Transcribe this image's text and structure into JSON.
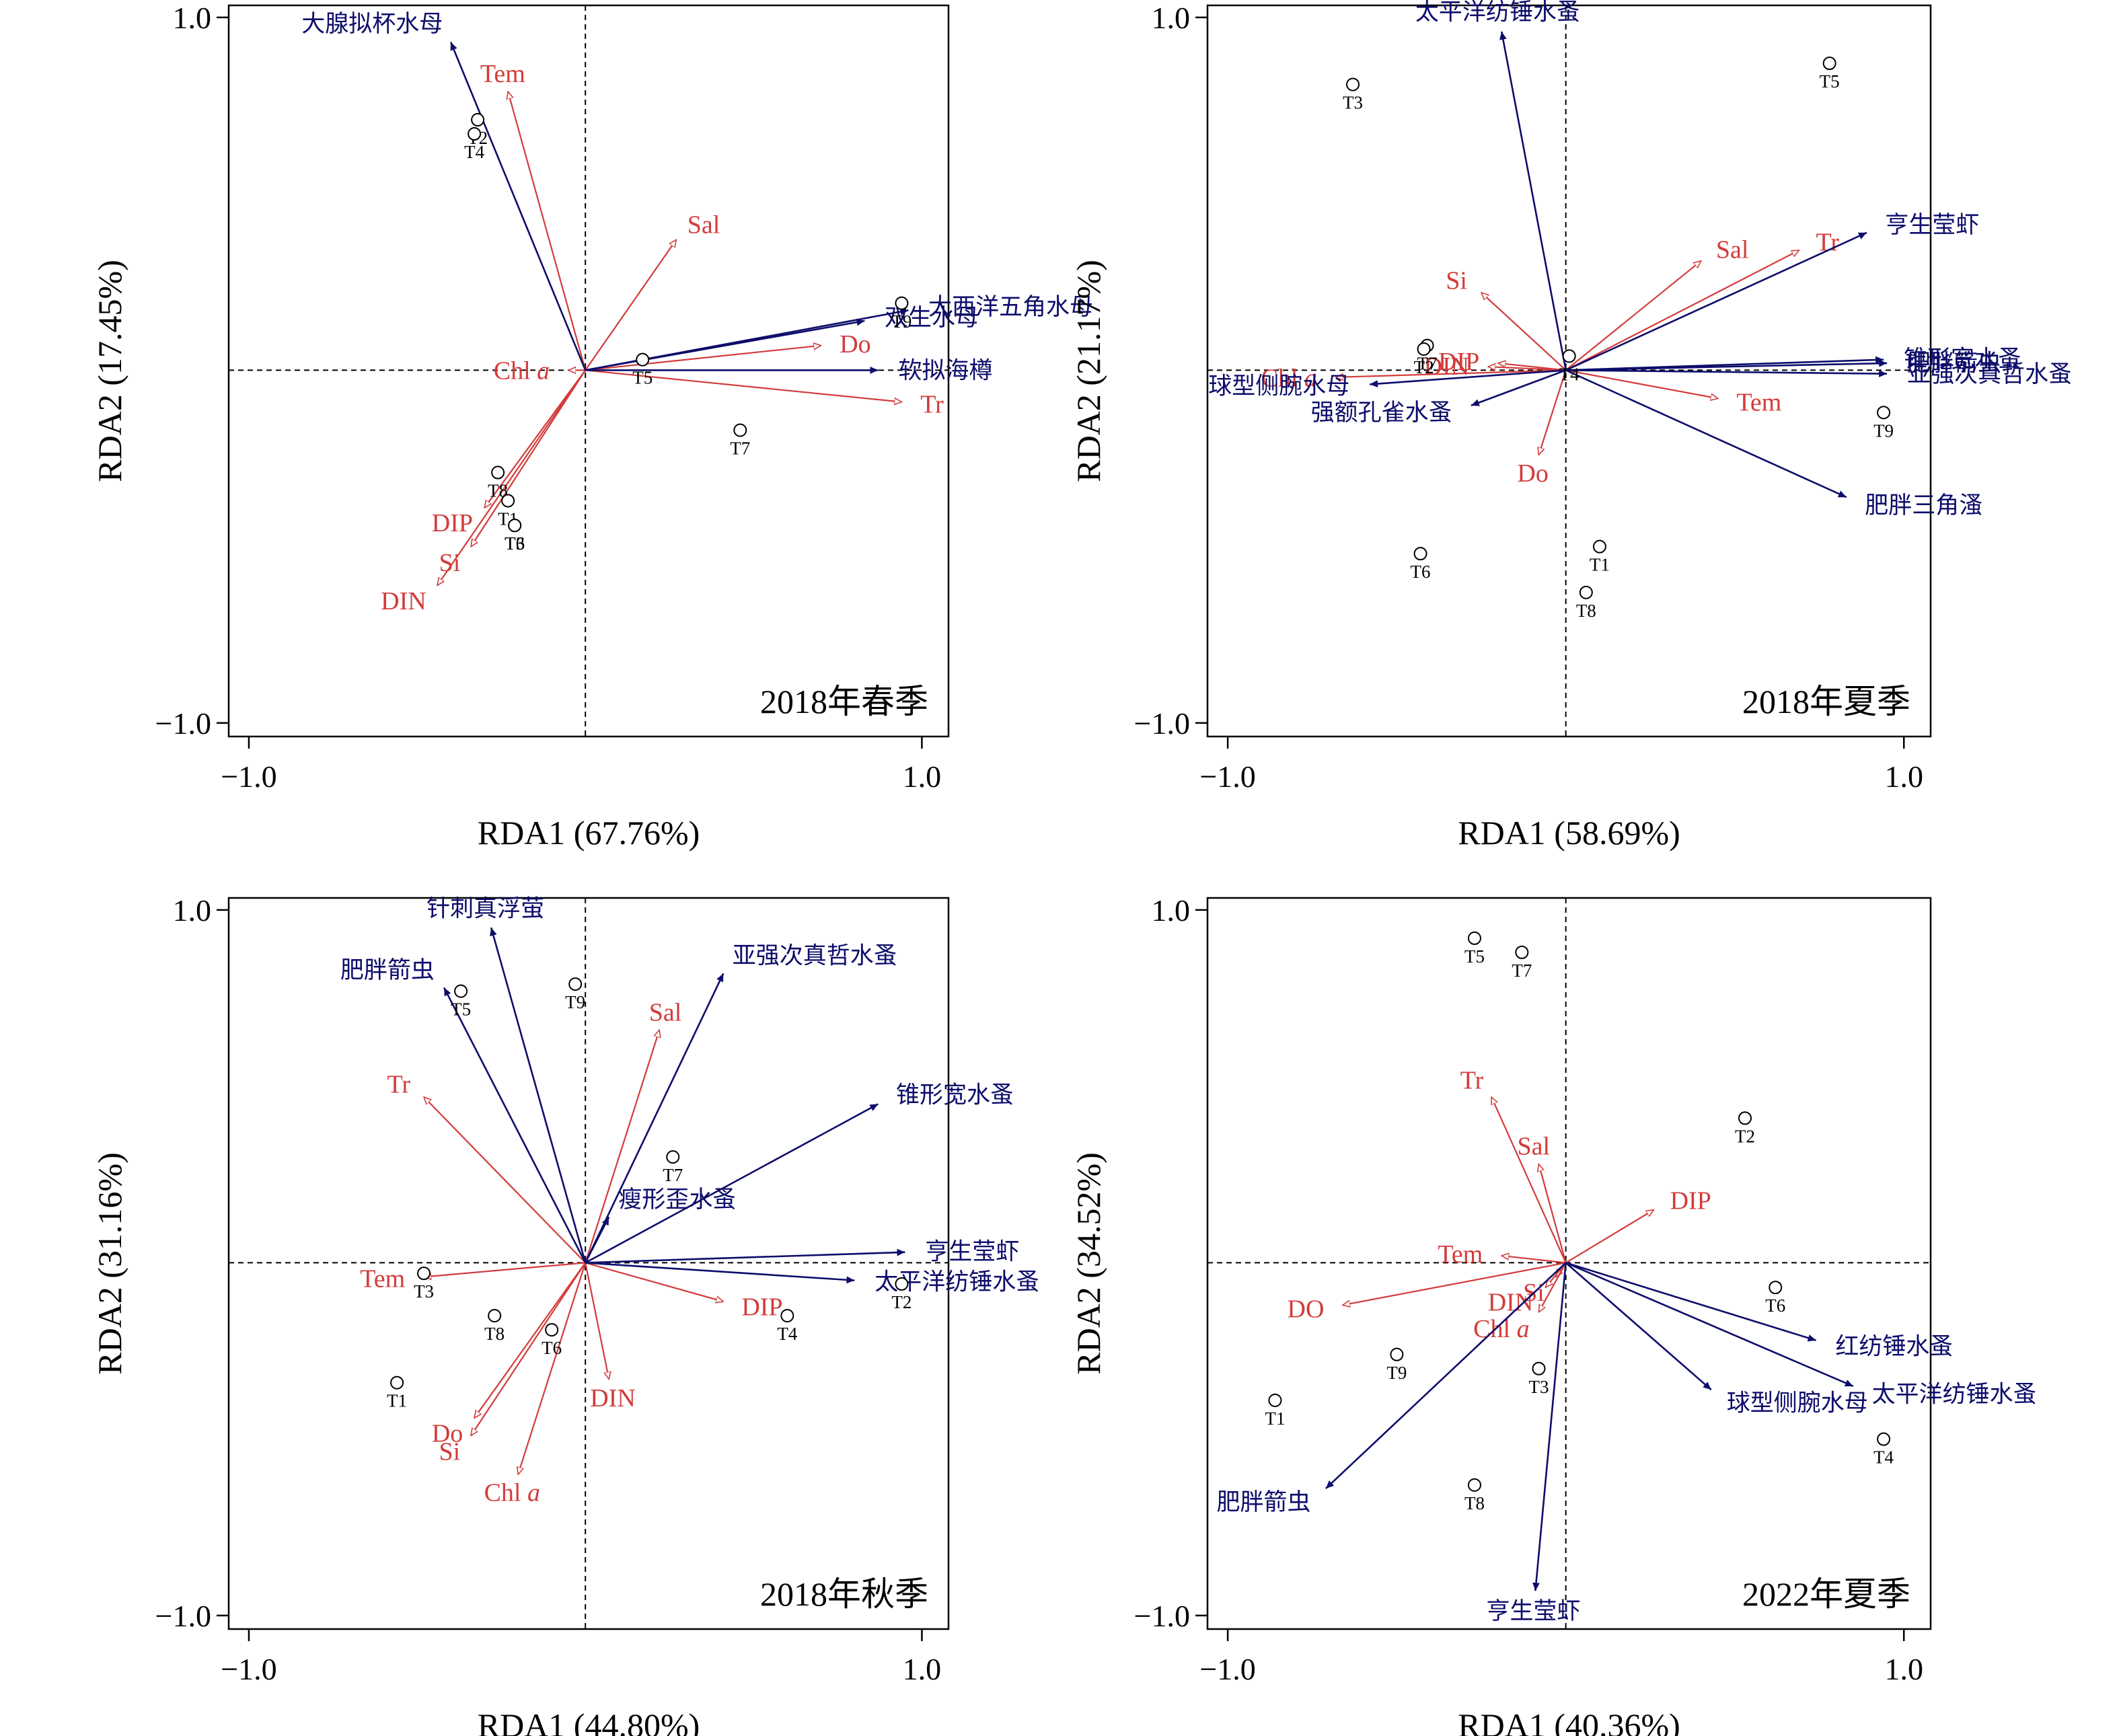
{
  "colors": {
    "env": "#d33b3b",
    "species": "#0d0d6b",
    "axis": "#000000"
  },
  "chart_data": [
    {
      "type": "scatter",
      "season": "2018年春季",
      "xlabel": "RDA1 (67.76%)",
      "ylabel": "RDA2 (17.45%)",
      "xlim": [
        -1.0,
        1.0
      ],
      "ylim": [
        -1.0,
        1.0
      ],
      "xticks": [
        "−1.0",
        "1.0"
      ],
      "yticks": [
        "1.0",
        "−1.0"
      ],
      "grid": false,
      "env_arrows": [
        {
          "name": "Tem",
          "x": -0.23,
          "y": 0.79
        },
        {
          "name": "Sal",
          "x": 0.27,
          "y": 0.37
        },
        {
          "name": "Do",
          "x": 0.7,
          "y": 0.07
        },
        {
          "name": "Tr",
          "x": 0.94,
          "y": -0.09
        },
        {
          "name": "Chl",
          "sub": "a",
          "x": -0.05,
          "y": 0.0
        },
        {
          "name": "DIP",
          "x": -0.3,
          "y": -0.39
        },
        {
          "name": "Si",
          "x": -0.34,
          "y": -0.5
        },
        {
          "name": "DIN",
          "x": -0.44,
          "y": -0.61
        }
      ],
      "species_arrows": [
        {
          "name": "大腺拟杯水母",
          "x": -0.4,
          "y": 0.93
        },
        {
          "name": "大西洋五角水母",
          "x": 0.96,
          "y": 0.17
        },
        {
          "name": "双生水母",
          "x": 0.83,
          "y": 0.14
        },
        {
          "name": "软拟海樽",
          "x": 0.87,
          "y": 0.0
        }
      ],
      "sites": [
        {
          "name": "T2",
          "x": -0.32,
          "y": 0.71
        },
        {
          "name": "T4",
          "x": -0.33,
          "y": 0.67
        },
        {
          "name": "T9",
          "x": 0.94,
          "y": 0.19
        },
        {
          "name": "T5",
          "x": 0.17,
          "y": 0.03
        },
        {
          "name": "T7",
          "x": 0.46,
          "y": -0.17
        },
        {
          "name": "T8",
          "x": -0.26,
          "y": -0.29
        },
        {
          "name": "T1",
          "x": -0.23,
          "y": -0.37
        },
        {
          "name": "T3",
          "x": -0.21,
          "y": -0.44
        },
        {
          "name": "T6",
          "x": -0.21,
          "y": -0.44
        }
      ]
    },
    {
      "type": "scatter",
      "season": "2018年夏季",
      "xlabel": "RDA1 (58.69%)",
      "ylabel": "RDA2 (21.17%)",
      "xlim": [
        -1.0,
        1.0
      ],
      "ylim": [
        -1.0,
        1.0
      ],
      "xticks": [
        "−1.0",
        "1.0"
      ],
      "yticks": [
        "1.0",
        "−1.0"
      ],
      "grid": false,
      "env_arrows": [
        {
          "name": "Sal",
          "x": 0.4,
          "y": 0.31
        },
        {
          "name": "Tr",
          "x": 0.69,
          "y": 0.34
        },
        {
          "name": "Si",
          "x": -0.25,
          "y": 0.22
        },
        {
          "name": "DIP",
          "x": -0.2,
          "y": 0.02
        },
        {
          "name": "DIN",
          "x": -0.23,
          "y": 0.01
        },
        {
          "name": "Chl",
          "sub": "a",
          "x": -0.68,
          "y": -0.02
        },
        {
          "name": "Tem",
          "x": 0.45,
          "y": -0.08
        },
        {
          "name": "Do",
          "x": -0.08,
          "y": -0.24
        }
      ],
      "species_arrows": [
        {
          "name": "太平洋纺锤水蚤",
          "x": -0.19,
          "y": 0.96
        },
        {
          "name": "亨生莹虾",
          "x": 0.89,
          "y": 0.39
        },
        {
          "name": "肥胖箭虫",
          "x": 0.95,
          "y": 0.02
        },
        {
          "name": "锥形宽水蚤",
          "x": 0.94,
          "y": 0.03
        },
        {
          "name": "亚强次真哲水蚤",
          "x": 0.95,
          "y": -0.01
        },
        {
          "name": "球型侧腕水母",
          "x": -0.58,
          "y": -0.04
        },
        {
          "name": "强额孔雀水蚤",
          "x": -0.28,
          "y": -0.1
        },
        {
          "name": "肥胖三角溞",
          "x": 0.83,
          "y": -0.36
        }
      ],
      "sites": [
        {
          "name": "T5",
          "x": 0.78,
          "y": 0.87
        },
        {
          "name": "T3",
          "x": -0.63,
          "y": 0.81
        },
        {
          "name": "T7",
          "x": -0.41,
          "y": 0.07
        },
        {
          "name": "T2",
          "x": -0.42,
          "y": 0.06
        },
        {
          "name": "T4",
          "x": 0.01,
          "y": 0.04
        },
        {
          "name": "T9",
          "x": 0.94,
          "y": -0.12
        },
        {
          "name": "T6",
          "x": -0.43,
          "y": -0.52
        },
        {
          "name": "T1",
          "x": 0.1,
          "y": -0.5
        },
        {
          "name": "T8",
          "x": 0.06,
          "y": -0.63
        }
      ]
    },
    {
      "type": "scatter",
      "season": "2018年秋季",
      "xlabel": "RDA1 (44.80%)",
      "ylabel": "RDA2 (31.16%)",
      "xlim": [
        -1.0,
        1.0
      ],
      "ylim": [
        -1.0,
        1.0
      ],
      "xticks": [
        "−1.0",
        "1.0"
      ],
      "yticks": [
        "1.0",
        "−1.0"
      ],
      "grid": false,
      "env_arrows": [
        {
          "name": "Sal",
          "x": 0.22,
          "y": 0.66
        },
        {
          "name": "Tr",
          "x": -0.48,
          "y": 0.47
        },
        {
          "name": "Tem",
          "x": -0.48,
          "y": -0.04
        },
        {
          "name": "DIP",
          "x": 0.41,
          "y": -0.11
        },
        {
          "name": "DIN",
          "x": 0.07,
          "y": -0.33
        },
        {
          "name": "Do",
          "x": -0.33,
          "y": -0.44
        },
        {
          "name": "Si",
          "x": -0.34,
          "y": -0.49
        },
        {
          "name": "Chl",
          "sub": "a",
          "x": -0.2,
          "y": -0.6
        }
      ],
      "species_arrows": [
        {
          "name": "针刺真浮萤",
          "x": -0.28,
          "y": 0.95
        },
        {
          "name": "肥胖箭虫",
          "x": -0.42,
          "y": 0.78
        },
        {
          "name": "亚强次真哲水蚤",
          "x": 0.41,
          "y": 0.82
        },
        {
          "name": "锥形宽水蚤",
          "x": 0.87,
          "y": 0.45
        },
        {
          "name": "瘦形歪水蚤",
          "x": 0.07,
          "y": 0.13
        },
        {
          "name": "亨生莹虾",
          "x": 0.95,
          "y": 0.03
        },
        {
          "name": "太平洋纺锤水蚤",
          "x": 0.8,
          "y": -0.05
        }
      ],
      "sites": [
        {
          "name": "T9",
          "x": -0.03,
          "y": 0.79
        },
        {
          "name": "T5",
          "x": -0.37,
          "y": 0.77
        },
        {
          "name": "T7",
          "x": 0.26,
          "y": 0.3
        },
        {
          "name": "T3",
          "x": -0.48,
          "y": -0.03
        },
        {
          "name": "T2",
          "x": 0.94,
          "y": -0.06
        },
        {
          "name": "T4",
          "x": 0.6,
          "y": -0.15
        },
        {
          "name": "T8",
          "x": -0.27,
          "y": -0.15
        },
        {
          "name": "T6",
          "x": -0.1,
          "y": -0.19
        },
        {
          "name": "T1",
          "x": -0.56,
          "y": -0.34
        }
      ]
    },
    {
      "type": "scatter",
      "season": "2022年夏季",
      "xlabel": "RDA1 (40.36%)",
      "ylabel": "RDA2 (34.52%)",
      "xlim": [
        -1.0,
        1.0
      ],
      "ylim": [
        -1.0,
        1.0
      ],
      "xticks": [
        "−1.0",
        "1.0"
      ],
      "yticks": [
        "1.0",
        "−1.0"
      ],
      "grid": false,
      "env_arrows": [
        {
          "name": "Tr",
          "x": -0.22,
          "y": 0.47
        },
        {
          "name": "Sal",
          "x": -0.08,
          "y": 0.28
        },
        {
          "name": "DIP",
          "x": 0.26,
          "y": 0.15
        },
        {
          "name": "Tem",
          "x": -0.19,
          "y": 0.02
        },
        {
          "name": "Si",
          "x": -0.03,
          "y": -0.04
        },
        {
          "name": "DIN",
          "x": -0.06,
          "y": -0.07
        },
        {
          "name": "DO",
          "x": -0.66,
          "y": -0.12
        },
        {
          "name": "Chl",
          "sub": "a",
          "x": -0.08,
          "y": -0.14
        }
      ],
      "species_arrows": [
        {
          "name": "红纺锤水蚤",
          "x": 0.74,
          "y": -0.22
        },
        {
          "name": "太平洋纺锤水蚤",
          "x": 0.85,
          "y": -0.35
        },
        {
          "name": "球型侧腕水母",
          "x": 0.43,
          "y": -0.36
        },
        {
          "name": "肥胖箭虫",
          "x": -0.71,
          "y": -0.64
        },
        {
          "name": "亨生莹虾",
          "x": -0.09,
          "y": -0.93
        }
      ],
      "sites": [
        {
          "name": "T5",
          "x": -0.27,
          "y": 0.92
        },
        {
          "name": "T7",
          "x": -0.13,
          "y": 0.88
        },
        {
          "name": "T2",
          "x": 0.53,
          "y": 0.41
        },
        {
          "name": "T6",
          "x": 0.62,
          "y": -0.07
        },
        {
          "name": "T3",
          "x": -0.08,
          "y": -0.3
        },
        {
          "name": "T9",
          "x": -0.5,
          "y": -0.26
        },
        {
          "name": "T1",
          "x": -0.86,
          "y": -0.39
        },
        {
          "name": "T4",
          "x": 0.94,
          "y": -0.5
        },
        {
          "name": "T8",
          "x": -0.27,
          "y": -0.63
        }
      ]
    }
  ]
}
